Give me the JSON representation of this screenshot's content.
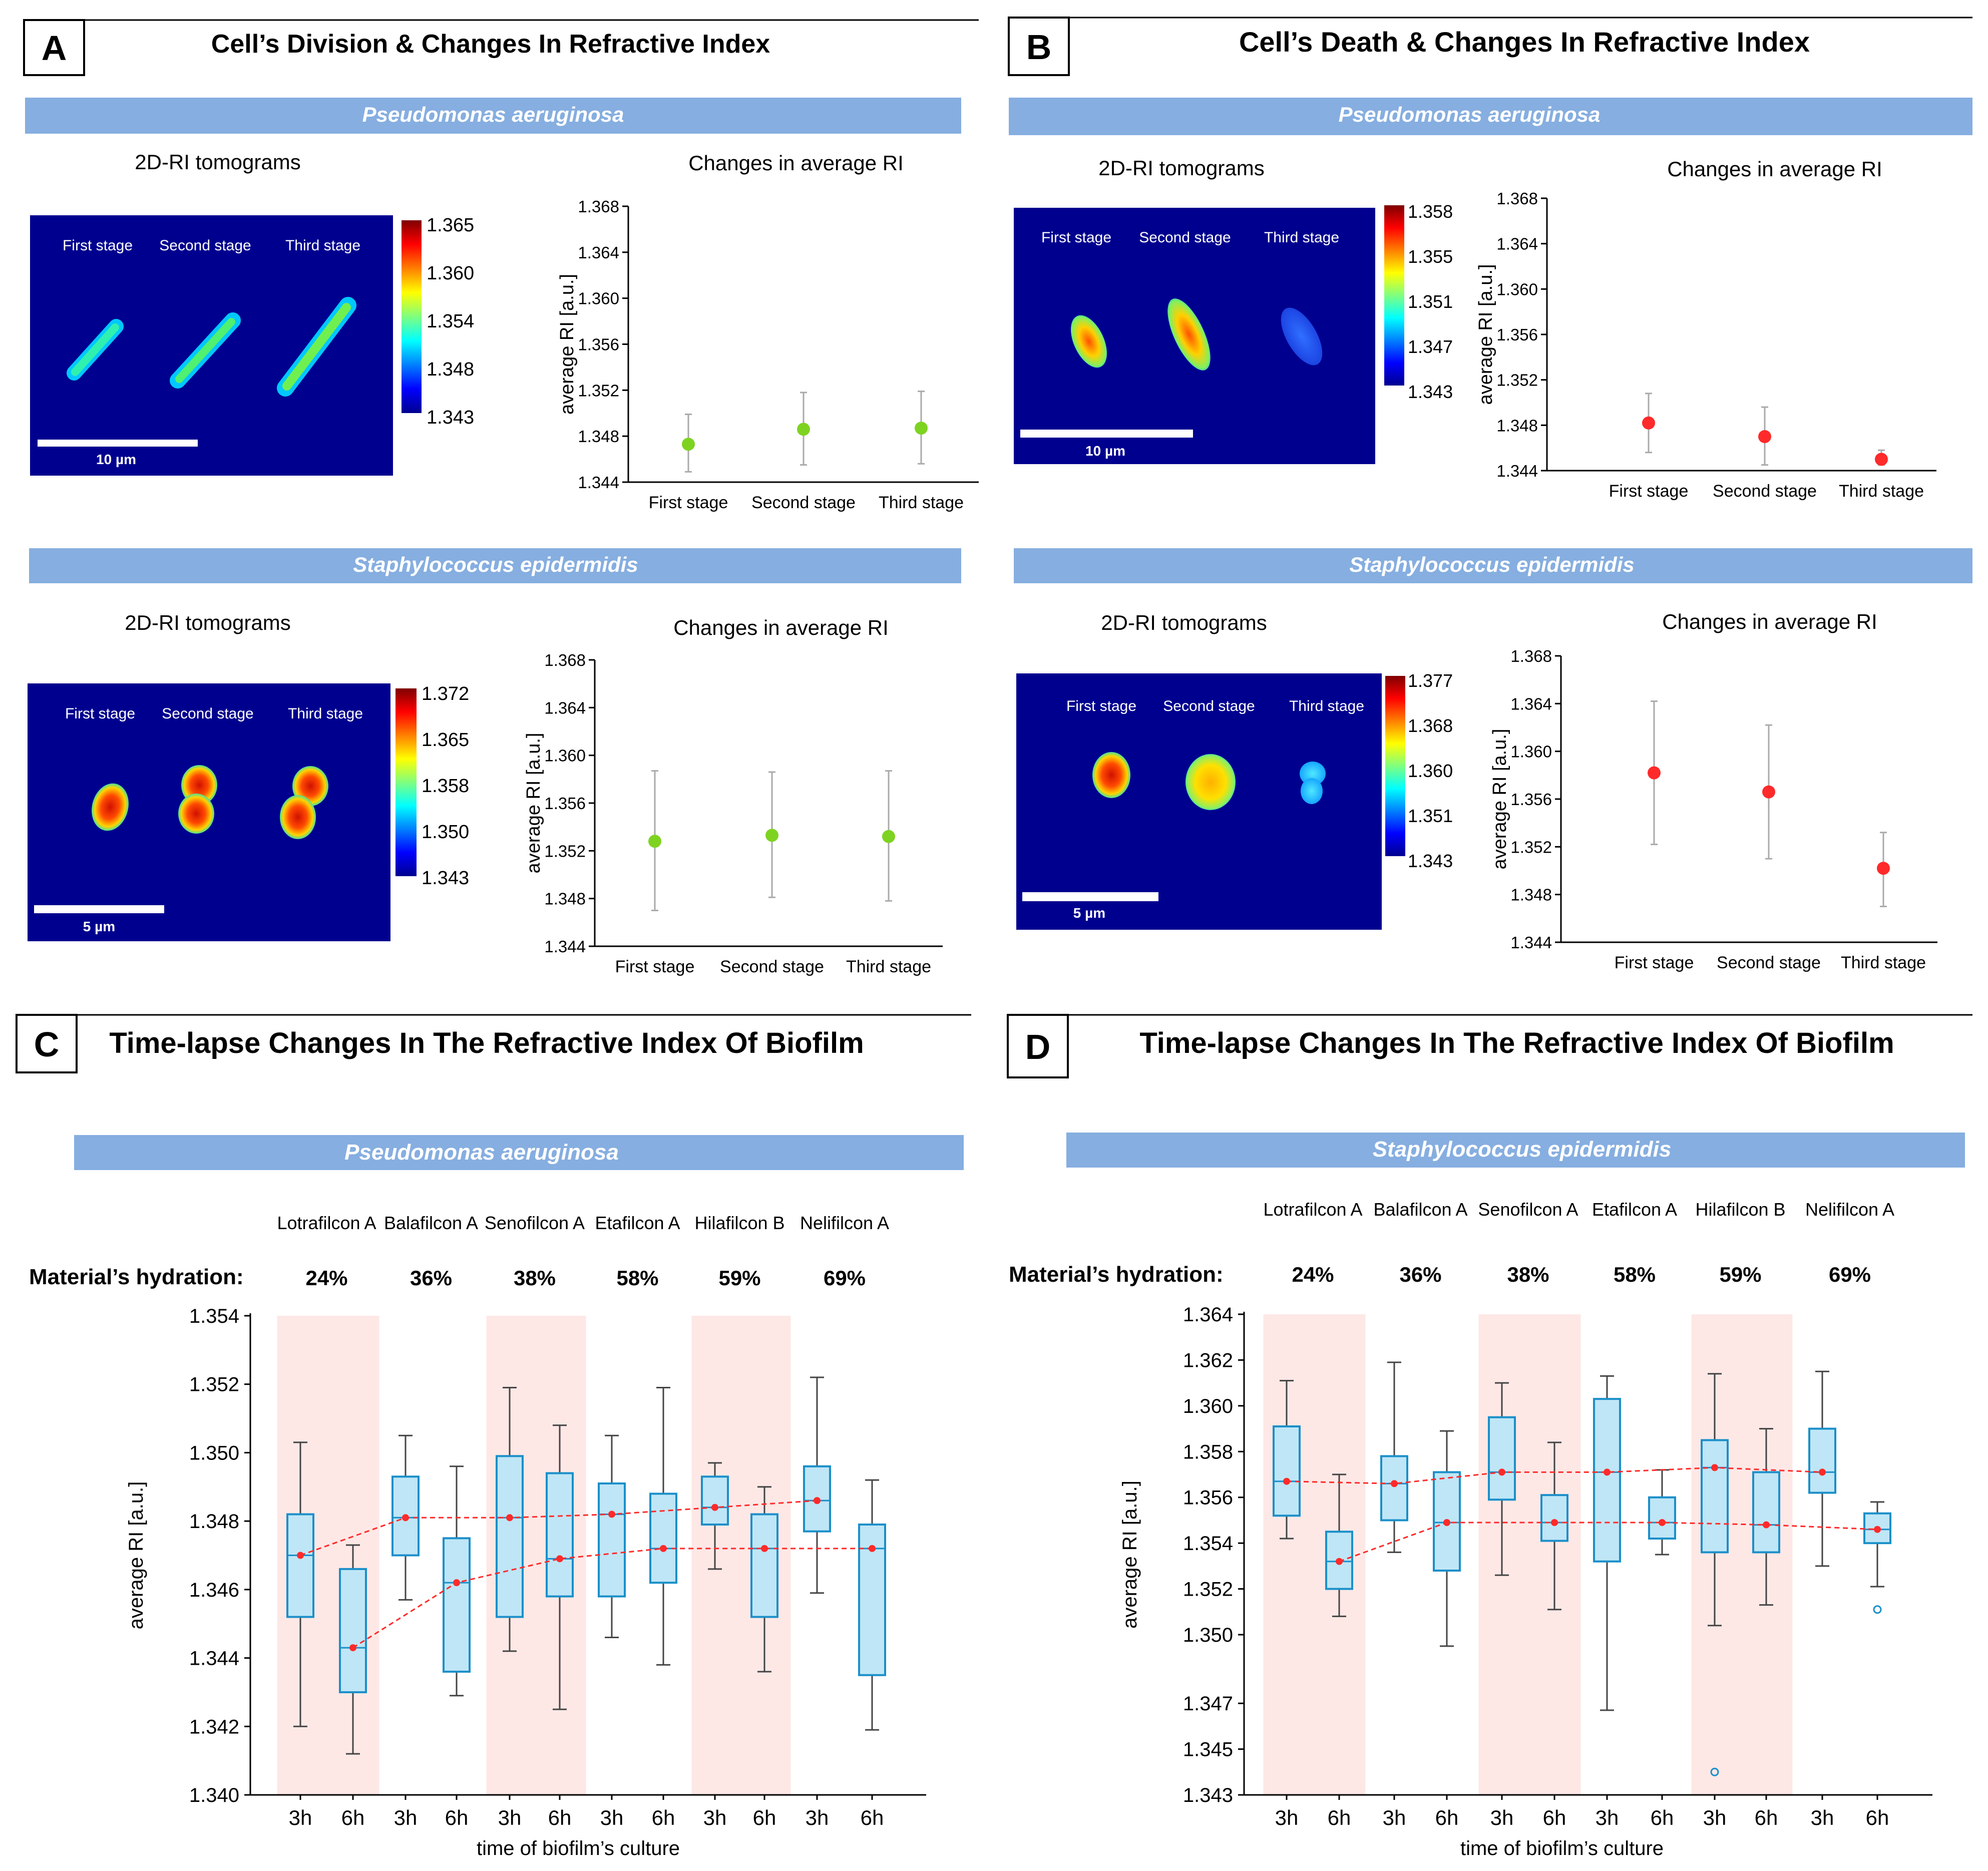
{
  "colors": {
    "banner": "#86aee0",
    "green": "#7ed321",
    "red": "#ff2a2a",
    "box_fill": "#bfe6f6",
    "box_edge": "#1a8fc9",
    "shade": "#fde8e6",
    "axis": "#000000",
    "err": "#aaaaaa"
  },
  "panels": {
    "A": {
      "letter": "A",
      "title": "Cell’s Division & Changes In Refractive Index",
      "pa_banner": "Pseudomonas aeruginosa",
      "se_banner": "Staphylococcus epidermidis",
      "pa_tomo_label": "2D-RI tomograms",
      "pa_chart_label": "Changes  in average RI",
      "se_tomo_label": "2D-RI tomograms",
      "se_chart_label": "Changes  in average RI",
      "pa_stages": [
        "First stage",
        "Second stage",
        "Third stage"
      ],
      "se_stages": [
        "First stage",
        "Second stage",
        "Third stage"
      ],
      "pa_scale": "10 µm",
      "se_scale": "5 µm",
      "pa_colorbar": [
        "1.365",
        "1.360",
        "1.354",
        "1.348",
        "1.343"
      ],
      "se_colorbar": [
        "1.372",
        "1.365",
        "1.358",
        "1.350",
        "1.343"
      ]
    },
    "B": {
      "letter": "B",
      "title": "Cell’s Death & Changes In Refractive Index",
      "pa_banner": "Pseudomonas aeruginosa",
      "se_banner": "Staphylococcus epidermidis",
      "pa_tomo_label": "2D-RI tomograms",
      "pa_chart_label": "Changes  in average RI",
      "se_tomo_label": "2D-RI tomograms",
      "se_chart_label": "Changes  in average RI",
      "pa_stages": [
        "First stage",
        "Second stage",
        "Third stage"
      ],
      "se_stages": [
        "First stage",
        "Second stage",
        "Third stage"
      ],
      "pa_scale": "10 µm",
      "se_scale": "5 µm",
      "pa_colorbar": [
        "1.358",
        "1.355",
        "1.351",
        "1.347",
        "1.343"
      ],
      "se_colorbar": [
        "1.377",
        "1.368",
        "1.360",
        "1.351",
        "1.343"
      ]
    },
    "C": {
      "letter": "C",
      "title": "Time-lapse Changes In The Refractive Index Of Biofilm",
      "banner": "Pseudomonas aeruginosa",
      "hydration_label": "Material’s hydration:",
      "materials": [
        "Lotrafilcon A",
        "Balafilcon A",
        "Senofilcon A",
        "Etafilcon A",
        "Hilafilcon B",
        "Nelifilcon A"
      ],
      "hydrations": [
        "24%",
        "36%",
        "38%",
        "58%",
        "59%",
        "69%"
      ]
    },
    "D": {
      "letter": "D",
      "title": "Time-lapse Changes In The Refractive Index Of Biofilm",
      "banner": "Staphylococcus epidermidis",
      "hydration_label": "Material’s hydration:",
      "materials": [
        "Lotrafilcon A",
        "Balafilcon A",
        "Senofilcon A",
        "Etafilcon A",
        "Hilafilcon B",
        "Nelifilcon A"
      ],
      "hydrations": [
        "24%",
        "36%",
        "38%",
        "58%",
        "59%",
        "69%"
      ]
    }
  },
  "chart_data": [
    {
      "id": "A_pa",
      "type": "scatter",
      "title": "Changes  in average RI",
      "ylabel": "average RI [a.u.]",
      "ylim": [
        1.344,
        1.368
      ],
      "yticks": [
        "1.344",
        "1.348",
        "1.352",
        "1.356",
        "1.360",
        "1.364",
        "1.368"
      ],
      "categories": [
        "First stage",
        "Second stage",
        "Third stage"
      ],
      "values": [
        1.3473,
        1.3486,
        1.3487
      ],
      "err_low": [
        1.3449,
        1.3455,
        1.3456
      ],
      "err_high": [
        1.3499,
        1.3518,
        1.3519
      ],
      "color": "green"
    },
    {
      "id": "A_se",
      "type": "scatter",
      "title": "Changes  in average RI",
      "ylabel": "average RI [a.u.]",
      "ylim": [
        1.344,
        1.368
      ],
      "yticks": [
        "1.344",
        "1.348",
        "1.352",
        "1.356",
        "1.360",
        "1.364",
        "1.368"
      ],
      "categories": [
        "First stage",
        "Second stage",
        "Third stage"
      ],
      "values": [
        1.3528,
        1.3533,
        1.3532
      ],
      "err_low": [
        1.347,
        1.3481,
        1.3478
      ],
      "err_high": [
        1.3587,
        1.3586,
        1.3587
      ],
      "color": "green"
    },
    {
      "id": "B_pa",
      "type": "scatter",
      "title": "Changes  in average RI",
      "ylabel": "average RI [a.u.]",
      "ylim": [
        1.344,
        1.368
      ],
      "yticks": [
        "1.344",
        "1.348",
        "1.352",
        "1.356",
        "1.360",
        "1.364",
        "1.368"
      ],
      "categories": [
        "First stage",
        "Second stage",
        "Third stage"
      ],
      "values": [
        1.3482,
        1.347,
        1.345
      ],
      "err_low": [
        1.3456,
        1.3445,
        1.3445
      ],
      "err_high": [
        1.3508,
        1.3496,
        1.3458
      ],
      "color": "red"
    },
    {
      "id": "B_se",
      "type": "scatter",
      "title": "Changes  in average RI",
      "ylabel": "average RI [a.u.]",
      "ylim": [
        1.344,
        1.368
      ],
      "yticks": [
        "1.344",
        "1.348",
        "1.352",
        "1.356",
        "1.360",
        "1.364",
        "1.368"
      ],
      "categories": [
        "First stage",
        "Second stage",
        "Third stage"
      ],
      "values": [
        1.3582,
        1.3566,
        1.3502
      ],
      "err_low": [
        1.3522,
        1.351,
        1.347
      ],
      "err_high": [
        1.3642,
        1.3622,
        1.3532
      ],
      "color": "red"
    },
    {
      "id": "C_box",
      "type": "box",
      "title": "Time-lapse Changes In The Refractive Index Of Biofilm",
      "xlabel": "time of biofilm’s culture",
      "ylabel": "average RI [a.u.]",
      "ylim": [
        1.34,
        1.354
      ],
      "yticks": [
        "1.340",
        "1.342",
        "1.344",
        "1.346",
        "1.348",
        "1.350",
        "1.352",
        "1.354"
      ],
      "categories": [
        "3h",
        "6h",
        "3h",
        "6h",
        "3h",
        "6h",
        "3h",
        "6h",
        "3h",
        "6h",
        "3h",
        "6h"
      ],
      "shaded_groups": [
        0,
        2,
        4
      ],
      "whisker_low": [
        1.342,
        1.3412,
        1.3457,
        1.3429,
        1.3442,
        1.3425,
        1.3446,
        1.3438,
        1.3466,
        1.3436,
        1.3459,
        1.3419
      ],
      "q1": [
        1.3452,
        1.343,
        1.347,
        1.3436,
        1.3452,
        1.3458,
        1.3458,
        1.3462,
        1.3479,
        1.3452,
        1.3477,
        1.3435
      ],
      "median": [
        1.347,
        1.3443,
        1.3481,
        1.3462,
        1.3481,
        1.3469,
        1.3482,
        1.3472,
        1.3484,
        1.3472,
        1.3486,
        1.3472
      ],
      "q3": [
        1.3482,
        1.3466,
        1.3493,
        1.3475,
        1.3499,
        1.3494,
        1.3491,
        1.3488,
        1.3493,
        1.3482,
        1.3496,
        1.3479
      ],
      "whisker_high": [
        1.3503,
        1.3473,
        1.3505,
        1.3496,
        1.3519,
        1.3508,
        1.3505,
        1.3519,
        1.3497,
        1.349,
        1.3522,
        1.3492
      ],
      "mean": [
        1.347,
        1.3443,
        1.3481,
        1.3462,
        1.3481,
        1.3469,
        1.3482,
        1.3472,
        1.3484,
        1.3472,
        1.3486,
        1.3472
      ],
      "outliers": []
    },
    {
      "id": "D_box",
      "type": "box",
      "title": "Time-lapse Changes In The Refractive Index Of Biofilm",
      "xlabel": "time of biofilm’s culture",
      "ylabel": "average RI [a.u.]",
      "ylim": [
        1.343,
        1.364
      ],
      "yticks": [
        "1.343",
        "1.345",
        "1.347",
        "1.350",
        "1.352",
        "1.354",
        "1.356",
        "1.358",
        "1.360",
        "1.362",
        "1.364"
      ],
      "categories": [
        "3h",
        "6h",
        "3h",
        "6h",
        "3h",
        "6h",
        "3h",
        "6h",
        "3h",
        "6h",
        "3h",
        "6h"
      ],
      "shaded_groups": [
        0,
        2,
        4
      ],
      "whisker_low": [
        1.3542,
        1.3508,
        1.3536,
        1.3495,
        1.3526,
        1.3511,
        1.3467,
        1.3535,
        1.3504,
        1.3513,
        1.353,
        1.3521
      ],
      "q1": [
        1.3552,
        1.352,
        1.355,
        1.3528,
        1.3559,
        1.3541,
        1.3532,
        1.3542,
        1.3536,
        1.3536,
        1.3562,
        1.354
      ],
      "median": [
        1.3567,
        1.3532,
        1.3566,
        1.3549,
        1.3571,
        1.3549,
        1.3571,
        1.3549,
        1.3573,
        1.3548,
        1.3571,
        1.3546
      ],
      "q3": [
        1.3591,
        1.3545,
        1.3578,
        1.3571,
        1.3595,
        1.3561,
        1.3603,
        1.356,
        1.3585,
        1.3571,
        1.359,
        1.3553
      ],
      "whisker_high": [
        1.3611,
        1.357,
        1.3619,
        1.3589,
        1.361,
        1.3584,
        1.3613,
        1.3572,
        1.3614,
        1.359,
        1.3615,
        1.3558
      ],
      "mean": [
        1.3567,
        1.3532,
        1.3566,
        1.3549,
        1.3571,
        1.3549,
        1.3571,
        1.3549,
        1.3573,
        1.3548,
        1.3571,
        1.3546
      ],
      "outliers": [
        {
          "index": 8,
          "value": 1.344
        },
        {
          "index": 11,
          "value": 1.3511
        }
      ]
    }
  ]
}
